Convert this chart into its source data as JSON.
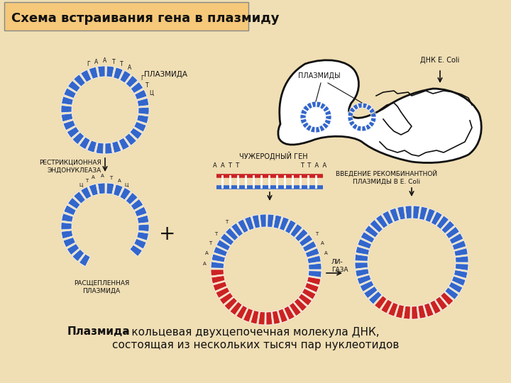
{
  "title": "Схема встраивания гена в плазмиду",
  "title_bg": "#F5C87A",
  "bg_color": "#F0DEB4",
  "blue_color": "#3366CC",
  "red_color": "#CC2222",
  "dark_color": "#111111",
  "text_color": "#111111",
  "label_plasmida": "ПЛАЗМИДА",
  "label_restr": "РЕСТРИКЦИОННАЯ\nЭНДОНУКЛЕАЗА",
  "label_rasshep": "РАСЩЕПЛЕННАЯ\nПЛАЗМИДА",
  "label_chujer": "ЧУЖЕРОДНЫЙ ГЕН",
  "label_plazmidy": "ПЛАЗМИДЫ",
  "label_dnk": "ДНК Е. Coli",
  "label_vvedenie": "ВВЕДЕНИЕ РЕКОМБИНАНТНОЙ\nПЛАЗМИДЫ В Е. Coli",
  "label_ligaza": "ЛИ-\nГАЗА",
  "label_bottom1": "Плазмида",
  "label_bottom2": " – кольцевая двухцепочечная молекула ДНК,",
  "label_bottom3": "состоящая из нескольких тысяч пар нуклеотидов"
}
